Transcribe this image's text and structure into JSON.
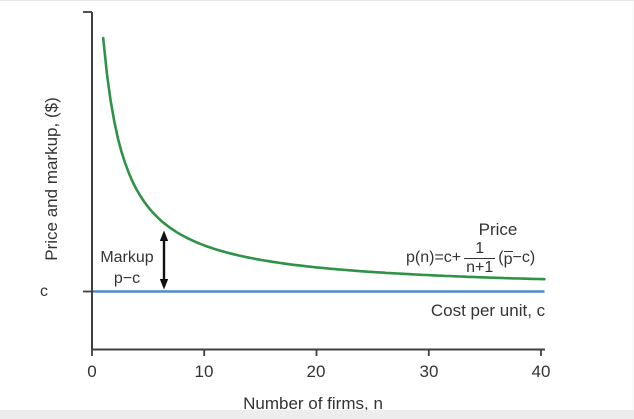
{
  "figure": {
    "y_axis_label": "Price and markup, ($)",
    "x_axis_label": "Number of firms, n",
    "x_ticks": [
      "0",
      "10",
      "20",
      "30",
      "40"
    ],
    "c_axis_label": "c",
    "markup_line1": "Markup",
    "markup_line2": "p−c",
    "price_label": "Price",
    "cost_line_label": "Cost per unit, c",
    "formula": {
      "lhs": "p(n)=c+",
      "numerator": "1",
      "denominator": "n+1",
      "open_paren": "(",
      "p_bar": "p",
      "tail": "−c)"
    }
  },
  "colors": {
    "price_curve": "#2e9247",
    "cost_line": "#4a8bc8",
    "axis": "#3f3f3f",
    "text": "#343434",
    "arrow": "#111111"
  },
  "chart_data": {
    "type": "line",
    "title": "",
    "xlabel": "Number of firms, n",
    "ylabel": "Price and markup, ($)",
    "xlim": [
      0,
      40
    ],
    "x_tick_values": [
      0,
      10,
      20,
      30,
      40
    ],
    "y_tick_labels": [
      "c"
    ],
    "grid": false,
    "legend_position": "none",
    "series": [
      {
        "name": "Price p(n) = c + (1/(n+1))(p̄−c)",
        "type": "curve",
        "color": "#2e9247",
        "formula_params": {
          "c": 1,
          "p_bar": 2,
          "n_start": 1,
          "n_end": 40.3
        },
        "sample_points_n": [
          1,
          2,
          5,
          10,
          20,
          30,
          40
        ],
        "sample_points_value": [
          1.5,
          1.333,
          1.167,
          1.091,
          1.048,
          1.032,
          1.024
        ]
      },
      {
        "name": "Cost per unit, c",
        "type": "horizontal-line",
        "color": "#4a8bc8",
        "value": 1
      }
    ],
    "annotations": [
      "Markup p−c shown as double-headed vertical arrow between price curve and cost line at n ≈ 6.4",
      "Price curve labelled with formula p(n)=c+ 1/(n+1) (p̄−c)"
    ]
  }
}
